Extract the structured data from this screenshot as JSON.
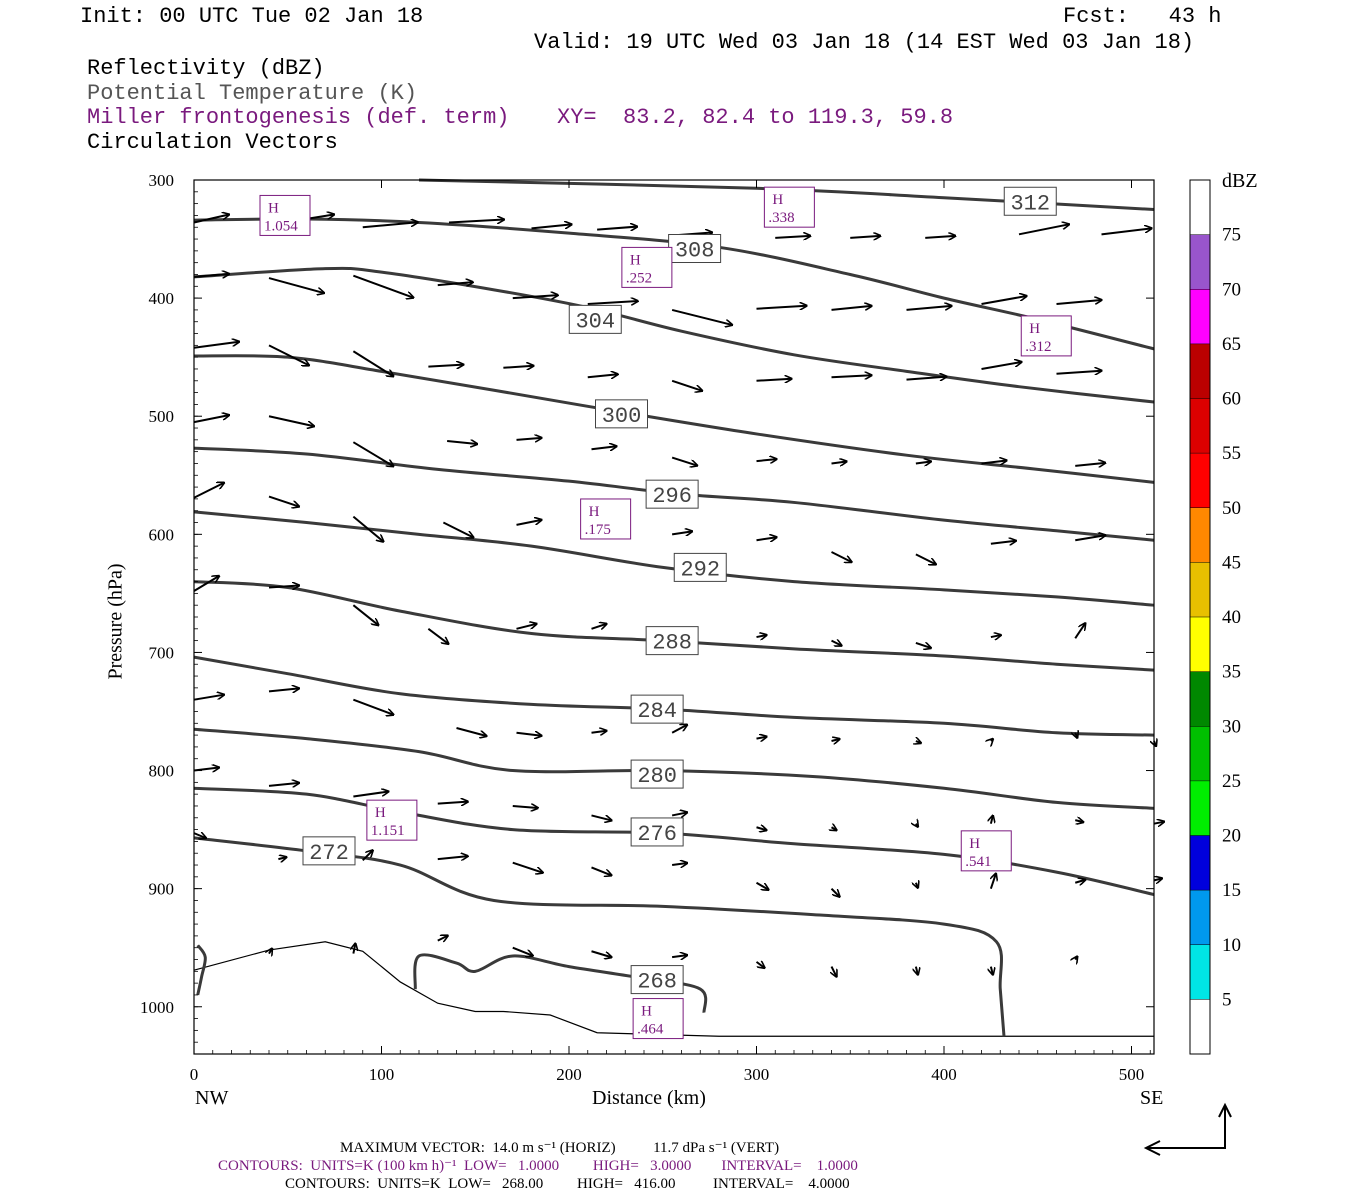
{
  "header": {
    "init": "Init: 00 UTC Tue 02 Jan 18",
    "fcst": "Fcst:   43 h",
    "valid": "Valid: 19 UTC Wed 03 Jan 18 (14 EST Wed 03 Jan 18)",
    "field1": "Reflectivity (dBZ)",
    "field2": "Potential Temperature (K)",
    "field3": "Miller frontogenesis (def. term)",
    "xy": "XY=  83.2, 82.4 to 119.3, 59.8",
    "field4": "Circulation Vectors"
  },
  "footer": {
    "max_vector": "MAXIMUM VECTOR:  14.0 m s⁻¹ (HORIZ)          11.7 dPa s⁻¹ (VERT)",
    "contours_purple": "CONTOURS:  UNITS=K (100 km h)⁻¹  LOW=   1.0000         HIGH=   3.0000        INTERVAL=    1.0000",
    "contours_black": "CONTOURS:  UNITS=K  LOW=   268.00         HIGH=   416.00          INTERVAL=    4.0000"
  },
  "chart_data": {
    "type": "cross-section",
    "xlabel": "Distance (km)",
    "ylabel": "Pressure (hPa)",
    "xlim": [
      0,
      512
    ],
    "ylim": [
      1040,
      300
    ],
    "x_ticks": [
      "0",
      "100",
      "200",
      "300",
      "400",
      "500"
    ],
    "y_ticks": [
      "300",
      "400",
      "500",
      "600",
      "700",
      "800",
      "900",
      "1000"
    ],
    "x_left_label": "NW",
    "x_right_label": "SE",
    "colorbar": {
      "unit": "dBZ",
      "levels": [
        "5",
        "10",
        "15",
        "20",
        "25",
        "30",
        "35",
        "40",
        "45",
        "50",
        "55",
        "60",
        "65",
        "70",
        "75"
      ],
      "colors": [
        "#ffffff",
        "#00e5e5",
        "#0099ee",
        "#0000dd",
        "#00ee00",
        "#00c000",
        "#008800",
        "#ffff00",
        "#e8c000",
        "#ff8800",
        "#ff0000",
        "#dd0000",
        "#bb0000",
        "#ff00ff",
        "#9955cc",
        "#ffffff"
      ]
    },
    "theta_contours": [
      {
        "label": "312",
        "points": [
          [
            120,
            300
          ],
          [
            300,
            307
          ],
          [
            400,
            315
          ],
          [
            512,
            325
          ]
        ],
        "label_at": [
          446,
          318
        ]
      },
      {
        "label": "308",
        "points": [
          [
            0,
            334
          ],
          [
            60,
            333
          ],
          [
            120,
            336
          ],
          [
            200,
            345
          ],
          [
            280,
            357
          ],
          [
            350,
            380
          ],
          [
            400,
            400
          ],
          [
            450,
            418
          ],
          [
            512,
            443
          ]
        ],
        "label_at": [
          267,
          358
        ]
      },
      {
        "label": "304",
        "points": [
          [
            0,
            382
          ],
          [
            70,
            375
          ],
          [
            100,
            378
          ],
          [
            160,
            393
          ],
          [
            210,
            408
          ],
          [
            260,
            428
          ],
          [
            320,
            448
          ],
          [
            380,
            462
          ],
          [
            440,
            475
          ],
          [
            512,
            488
          ]
        ],
        "label_at": [
          214,
          418
        ]
      },
      {
        "label": "300",
        "points": [
          [
            0,
            449
          ],
          [
            50,
            450
          ],
          [
            100,
            462
          ],
          [
            160,
            478
          ],
          [
            230,
            497
          ],
          [
            300,
            515
          ],
          [
            380,
            533
          ],
          [
            450,
            545
          ],
          [
            512,
            556
          ]
        ],
        "label_at": [
          228,
          498
        ]
      },
      {
        "label": "296",
        "points": [
          [
            0,
            527
          ],
          [
            60,
            532
          ],
          [
            130,
            545
          ],
          [
            200,
            555
          ],
          [
            260,
            566
          ],
          [
            320,
            573
          ],
          [
            400,
            588
          ],
          [
            460,
            597
          ],
          [
            512,
            605
          ]
        ],
        "label_at": [
          255,
          566
        ]
      },
      {
        "label": "292",
        "points": [
          [
            0,
            581
          ],
          [
            60,
            590
          ],
          [
            120,
            600
          ],
          [
            180,
            610
          ],
          [
            250,
            628
          ],
          [
            320,
            640
          ],
          [
            400,
            647
          ],
          [
            460,
            653
          ],
          [
            512,
            660
          ]
        ],
        "label_at": [
          270,
          628
        ]
      },
      {
        "label": "288",
        "points": [
          [
            0,
            640
          ],
          [
            50,
            645
          ],
          [
            110,
            665
          ],
          [
            180,
            684
          ],
          [
            250,
            690
          ],
          [
            320,
            697
          ],
          [
            400,
            703
          ],
          [
            460,
            710
          ],
          [
            512,
            715
          ]
        ],
        "label_at": [
          255,
          690
        ]
      },
      {
        "label": "284",
        "points": [
          [
            0,
            704
          ],
          [
            50,
            718
          ],
          [
            110,
            735
          ],
          [
            180,
            744
          ],
          [
            250,
            748
          ],
          [
            320,
            755
          ],
          [
            400,
            760
          ],
          [
            460,
            768
          ],
          [
            512,
            770
          ]
        ],
        "label_at": [
          247,
          748
        ]
      },
      {
        "label": "280",
        "points": [
          [
            0,
            765
          ],
          [
            60,
            773
          ],
          [
            120,
            784
          ],
          [
            170,
            800
          ],
          [
            250,
            800
          ],
          [
            330,
            805
          ],
          [
            400,
            815
          ],
          [
            460,
            827
          ],
          [
            512,
            832
          ]
        ],
        "label_at": [
          247,
          803
        ]
      },
      {
        "label": "276",
        "points": [
          [
            0,
            815
          ],
          [
            60,
            820
          ],
          [
            110,
            835
          ],
          [
            170,
            850
          ],
          [
            250,
            853
          ],
          [
            320,
            862
          ],
          [
            400,
            871
          ],
          [
            460,
            886
          ],
          [
            512,
            905
          ]
        ],
        "label_at": [
          247,
          852
        ]
      },
      {
        "label": "272",
        "points": [
          [
            0,
            857
          ],
          [
            60,
            868
          ],
          [
            110,
            880
          ],
          [
            160,
            910
          ],
          [
            250,
            915
          ],
          [
            330,
            922
          ],
          [
            400,
            930
          ],
          [
            428,
            945
          ],
          [
            430,
            985
          ],
          [
            432,
            1025
          ]
        ],
        "label_at": [
          72,
          868
        ]
      },
      {
        "label": "268",
        "points": [
          [
            118,
            985
          ],
          [
            120,
            957
          ],
          [
            140,
            963
          ],
          [
            150,
            970
          ],
          [
            170,
            957
          ],
          [
            200,
            966
          ],
          [
            240,
            976
          ],
          [
            270,
            985
          ],
          [
            272,
            1005
          ]
        ],
        "label_at": [
          247,
          977
        ]
      },
      {
        "label": "272",
        "points": [
          [
            2,
            990
          ],
          [
            4,
            975
          ],
          [
            6,
            958
          ],
          [
            2,
            948
          ]
        ],
        "label_at": null
      }
    ],
    "terrain": [
      [
        0,
        969
      ],
      [
        40,
        952
      ],
      [
        70,
        945
      ],
      [
        90,
        953
      ],
      [
        110,
        979
      ],
      [
        130,
        997
      ],
      [
        150,
        1004
      ],
      [
        165,
        1004
      ],
      [
        190,
        1007
      ],
      [
        215,
        1022
      ],
      [
        280,
        1025
      ],
      [
        512,
        1025
      ]
    ],
    "frontogenesis_maxima": [
      {
        "label": "H",
        "value": "1.054",
        "x": 48,
        "p": 330
      },
      {
        "label": "H",
        "value": ".338",
        "x": 317,
        "p": 323
      },
      {
        "label": "H",
        "value": ".252",
        "x": 241,
        "p": 374
      },
      {
        "label": "H",
        "value": ".312",
        "x": 454,
        "p": 432
      },
      {
        "label": "H",
        "value": ".175",
        "x": 219,
        "p": 587
      },
      {
        "label": "H",
        "value": "1.151",
        "x": 105,
        "p": 842
      },
      {
        "label": "H",
        "value": ".541",
        "x": 422,
        "p": 868
      },
      {
        "label": "H",
        "value": ".464",
        "x": 247,
        "p": 1010
      }
    ],
    "circulation_vectors": [
      [
        0,
        336,
        35,
        -8
      ],
      [
        48,
        336,
        50,
        -8
      ],
      [
        90,
        340,
        55,
        -5
      ],
      [
        136,
        336,
        55,
        -3
      ],
      [
        180,
        341,
        40,
        -4
      ],
      [
        215,
        342,
        40,
        -3
      ],
      [
        255,
        347,
        40,
        -3
      ],
      [
        310,
        349,
        35,
        -2
      ],
      [
        350,
        349,
        30,
        -2
      ],
      [
        390,
        349,
        30,
        -2
      ],
      [
        440,
        346,
        50,
        -10
      ],
      [
        484,
        346,
        50,
        -6
      ],
      [
        0,
        382,
        35,
        -3
      ],
      [
        40,
        383,
        55,
        15
      ],
      [
        85,
        381,
        60,
        22
      ],
      [
        130,
        389,
        35,
        -3
      ],
      [
        170,
        400,
        45,
        -3
      ],
      [
        210,
        405,
        50,
        -3
      ],
      [
        255,
        410,
        60,
        15
      ],
      [
        300,
        409,
        50,
        -3
      ],
      [
        340,
        410,
        40,
        -4
      ],
      [
        380,
        410,
        45,
        -4
      ],
      [
        420,
        405,
        45,
        -8
      ],
      [
        460,
        405,
        45,
        -4
      ],
      [
        0,
        442,
        45,
        -6
      ],
      [
        40,
        440,
        40,
        20
      ],
      [
        85,
        445,
        40,
        25
      ],
      [
        125,
        458,
        35,
        -2
      ],
      [
        165,
        459,
        30,
        -2
      ],
      [
        210,
        467,
        30,
        -3
      ],
      [
        255,
        470,
        30,
        10
      ],
      [
        300,
        470,
        35,
        -2
      ],
      [
        340,
        467,
        40,
        -2
      ],
      [
        380,
        469,
        40,
        -3
      ],
      [
        420,
        460,
        40,
        -7
      ],
      [
        460,
        464,
        45,
        -3
      ],
      [
        0,
        505,
        35,
        -7
      ],
      [
        40,
        500,
        45,
        10
      ],
      [
        85,
        522,
        40,
        24
      ],
      [
        135,
        521,
        30,
        3
      ],
      [
        172,
        520,
        25,
        -2
      ],
      [
        212,
        528,
        25,
        -3
      ],
      [
        255,
        535,
        25,
        8
      ],
      [
        300,
        538,
        20,
        -2
      ],
      [
        340,
        540,
        15,
        -2
      ],
      [
        385,
        540,
        15,
        -2
      ],
      [
        420,
        540,
        25,
        -3
      ],
      [
        470,
        542,
        30,
        -3
      ],
      [
        0,
        569,
        30,
        -15
      ],
      [
        40,
        568,
        30,
        10
      ],
      [
        85,
        585,
        30,
        25
      ],
      [
        133,
        590,
        30,
        15
      ],
      [
        172,
        592,
        25,
        -5
      ],
      [
        212,
        595,
        25,
        -5
      ],
      [
        255,
        600,
        20,
        -3
      ],
      [
        300,
        605,
        20,
        -3
      ],
      [
        340,
        615,
        20,
        10
      ],
      [
        385,
        617,
        20,
        10
      ],
      [
        425,
        608,
        25,
        -3
      ],
      [
        470,
        605,
        30,
        -5
      ],
      [
        0,
        648,
        25,
        -15
      ],
      [
        40,
        645,
        30,
        -2
      ],
      [
        85,
        660,
        25,
        20
      ],
      [
        125,
        680,
        20,
        15
      ],
      [
        172,
        680,
        20,
        -5
      ],
      [
        212,
        680,
        15,
        -5
      ],
      [
        300,
        687,
        10,
        -2
      ],
      [
        340,
        690,
        10,
        5
      ],
      [
        385,
        692,
        15,
        5
      ],
      [
        425,
        687,
        10,
        -2
      ],
      [
        470,
        688,
        10,
        -15
      ],
      [
        0,
        740,
        30,
        -5
      ],
      [
        40,
        733,
        30,
        -3
      ],
      [
        85,
        740,
        40,
        15
      ],
      [
        140,
        764,
        30,
        8
      ],
      [
        172,
        768,
        25,
        3
      ],
      [
        212,
        768,
        15,
        -2
      ],
      [
        255,
        768,
        15,
        -8
      ],
      [
        300,
        773,
        10,
        -2
      ],
      [
        340,
        775,
        8,
        -2
      ],
      [
        385,
        775,
        5,
        2
      ],
      [
        425,
        775,
        2,
        -2
      ],
      [
        470,
        768,
        2,
        5
      ],
      [
        512,
        775,
        2,
        5
      ],
      [
        0,
        800,
        25,
        -3
      ],
      [
        40,
        813,
        30,
        -3
      ],
      [
        85,
        822,
        35,
        -5
      ],
      [
        130,
        828,
        30,
        -2
      ],
      [
        170,
        830,
        25,
        2
      ],
      [
        212,
        838,
        20,
        5
      ],
      [
        255,
        838,
        15,
        -3
      ],
      [
        300,
        848,
        10,
        3
      ],
      [
        340,
        848,
        5,
        3
      ],
      [
        385,
        845,
        2,
        3
      ],
      [
        425,
        845,
        2,
        -8
      ],
      [
        470,
        842,
        8,
        2
      ],
      [
        512,
        845,
        10,
        -2
      ],
      [
        0,
        853,
        12,
        5
      ],
      [
        45,
        875,
        8,
        -2
      ],
      [
        90,
        876,
        10,
        -10
      ],
      [
        130,
        875,
        30,
        -3
      ],
      [
        170,
        878,
        30,
        10
      ],
      [
        212,
        882,
        20,
        8
      ],
      [
        255,
        880,
        15,
        -2
      ],
      [
        300,
        895,
        12,
        7
      ],
      [
        340,
        900,
        8,
        8
      ],
      [
        385,
        895,
        2,
        5
      ],
      [
        425,
        900,
        5,
        -15
      ],
      [
        470,
        895,
        10,
        -3
      ],
      [
        512,
        893,
        8,
        -2
      ],
      [
        130,
        944,
        10,
        -5
      ],
      [
        170,
        950,
        20,
        8
      ],
      [
        212,
        953,
        20,
        6
      ],
      [
        255,
        958,
        15,
        -2
      ],
      [
        300,
        962,
        8,
        6
      ],
      [
        340,
        966,
        5,
        10
      ],
      [
        385,
        966,
        2,
        8
      ],
      [
        425,
        966,
        2,
        8
      ],
      [
        470,
        960,
        2,
        -3
      ],
      [
        40,
        955,
        3,
        -5
      ],
      [
        85,
        955,
        2,
        -10
      ]
    ]
  }
}
